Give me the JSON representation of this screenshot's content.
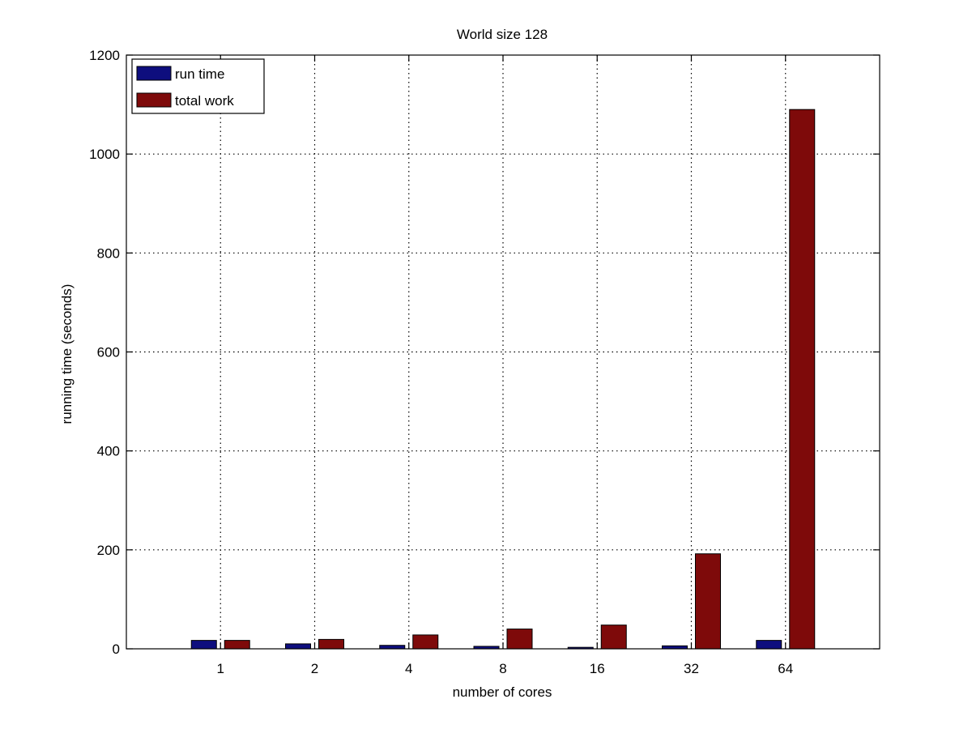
{
  "chart_data": {
    "type": "bar",
    "title": "World size 128",
    "xlabel": "number of cores",
    "ylabel": "running time (seconds)",
    "categories": [
      "1",
      "2",
      "4",
      "8",
      "16",
      "32",
      "64"
    ],
    "series": [
      {
        "name": "run time",
        "values": [
          17,
          10,
          7,
          5,
          3,
          6,
          17
        ],
        "color": "#0e0e7e"
      },
      {
        "name": "total work",
        "values": [
          17,
          19,
          28,
          40,
          48,
          192,
          1090
        ],
        "color": "#7e0a0a"
      }
    ],
    "ylim": [
      0,
      1200
    ],
    "yticks": [
      0,
      200,
      400,
      600,
      800,
      1000,
      1200
    ],
    "grid": true,
    "legend_position": "top-left"
  }
}
